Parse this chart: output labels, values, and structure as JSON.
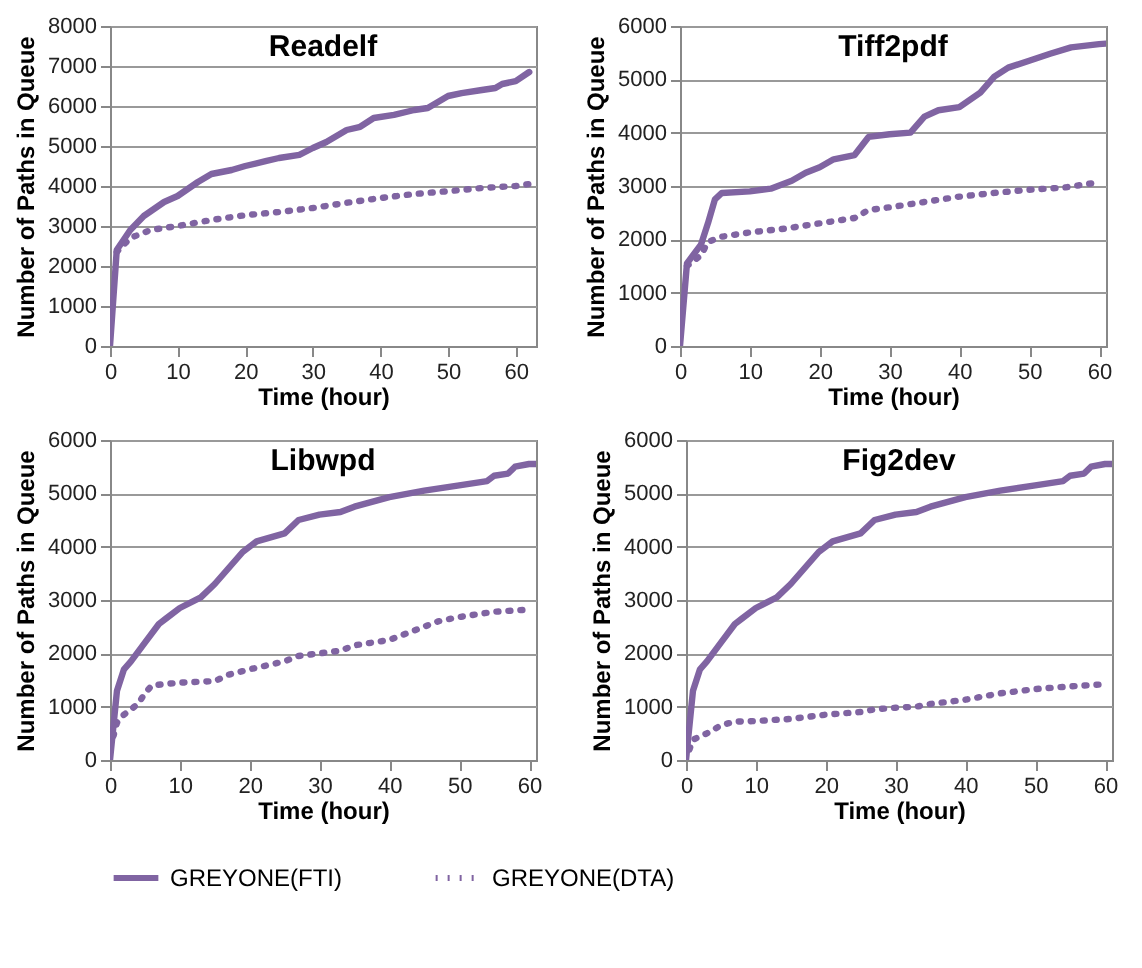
{
  "chart_data": [
    {
      "type": "line",
      "title": "Readelf",
      "xlabel": "Time (hour)",
      "ylabel": "Number of Paths in Queue",
      "xlim": [
        0,
        63
      ],
      "xticks": [
        0,
        10,
        20,
        30,
        40,
        50,
        60
      ],
      "ylim": [
        0,
        8000
      ],
      "yticks": [
        0,
        1000,
        2000,
        3000,
        4000,
        5000,
        6000,
        7000,
        8000
      ],
      "grid": "y",
      "legend": "bottom",
      "marker": "none",
      "series": [
        {
          "name": "GREYONE(FTI)",
          "color": "#8064a2",
          "line_style": "solid",
          "x": [
            0,
            1,
            3,
            5,
            8,
            10,
            13,
            15,
            18,
            20,
            23,
            25,
            28,
            30,
            32,
            35,
            37,
            39,
            42,
            45,
            47,
            50,
            52,
            55,
            57,
            58,
            60,
            62
          ],
          "values": [
            0,
            2400,
            2900,
            3250,
            3600,
            3750,
            4100,
            4300,
            4400,
            4500,
            4620,
            4700,
            4780,
            4950,
            5100,
            5400,
            5480,
            5700,
            5780,
            5900,
            5950,
            6250,
            6320,
            6400,
            6450,
            6550,
            6620,
            6850
          ]
        },
        {
          "name": "GREYONE(DTA)",
          "color": "#8064a2",
          "line_style": "dotted",
          "x": [
            1,
            3,
            6,
            10,
            15,
            20,
            25,
            30,
            35,
            40,
            45,
            50,
            55,
            60,
            62
          ],
          "values": [
            2350,
            2700,
            2900,
            3000,
            3150,
            3270,
            3350,
            3450,
            3580,
            3700,
            3800,
            3870,
            3950,
            4000,
            4050
          ]
        }
      ]
    },
    {
      "type": "line",
      "title": "Tiff2pdf",
      "xlabel": "Time (hour)",
      "ylabel": "Number of Paths in Queue",
      "xlim": [
        0,
        61
      ],
      "xticks": [
        0,
        10,
        20,
        30,
        40,
        50,
        60
      ],
      "ylim": [
        0,
        6000
      ],
      "yticks": [
        0,
        1000,
        2000,
        3000,
        4000,
        5000,
        6000
      ],
      "grid": "y",
      "legend": "bottom",
      "marker": "none",
      "series": [
        {
          "name": "GREYONE(FTI)",
          "color": "#8064a2",
          "line_style": "solid",
          "x": [
            0,
            1,
            3,
            4,
            5,
            6,
            10,
            13,
            16,
            18,
            20,
            22,
            25,
            27,
            30,
            33,
            35,
            37,
            40,
            43,
            45,
            47,
            50,
            53,
            56,
            60,
            61
          ],
          "values": [
            0,
            1550,
            1900,
            2300,
            2750,
            2870,
            2900,
            2950,
            3100,
            3250,
            3350,
            3500,
            3580,
            3920,
            3970,
            4000,
            4300,
            4420,
            4480,
            4750,
            5050,
            5220,
            5350,
            5480,
            5600,
            5660,
            5670
          ]
        },
        {
          "name": "GREYONE(DTA)",
          "color": "#8064a2",
          "line_style": "dotted",
          "x": [
            1,
            3,
            4,
            6,
            10,
            15,
            20,
            25,
            27,
            30,
            35,
            40,
            45,
            50,
            55,
            59
          ],
          "values": [
            1500,
            1700,
            1950,
            2050,
            2130,
            2200,
            2300,
            2400,
            2550,
            2600,
            2700,
            2800,
            2870,
            2930,
            2970,
            3050
          ]
        }
      ]
    },
    {
      "type": "line",
      "title": "Libwpd",
      "xlabel": "Time (hour)",
      "ylabel": "Number of Paths in Queue",
      "xlim": [
        0,
        61
      ],
      "xticks": [
        0,
        10,
        20,
        30,
        40,
        50,
        60
      ],
      "ylim": [
        0,
        6000
      ],
      "yticks": [
        0,
        1000,
        2000,
        3000,
        4000,
        5000,
        6000
      ],
      "grid": "y",
      "legend": "bottom",
      "marker": "none",
      "series": [
        {
          "name": "GREYONE(FTI)",
          "color": "#8064a2",
          "line_style": "solid",
          "x": [
            0,
            1,
            2,
            3,
            5,
            7,
            8,
            10,
            13,
            15,
            17,
            19,
            21,
            25,
            27,
            30,
            33,
            35,
            40,
            45,
            50,
            54,
            55,
            57,
            58,
            60,
            61
          ],
          "values": [
            0,
            1300,
            1700,
            1850,
            2200,
            2550,
            2650,
            2850,
            3050,
            3300,
            3600,
            3900,
            4100,
            4250,
            4500,
            4600,
            4650,
            4750,
            4930,
            5050,
            5150,
            5230,
            5330,
            5370,
            5500,
            5550,
            5550
          ]
        },
        {
          "name": "GREYONE(DTA)",
          "color": "#8064a2",
          "line_style": "dotted",
          "x": [
            0.5,
            1,
            2,
            4,
            5,
            6,
            10,
            15,
            17,
            20,
            25,
            27,
            30,
            33,
            35,
            40,
            45,
            47,
            50,
            55,
            60
          ],
          "values": [
            450,
            700,
            850,
            1050,
            1250,
            1400,
            1450,
            1480,
            1600,
            1700,
            1850,
            1950,
            2000,
            2050,
            2150,
            2250,
            2500,
            2600,
            2680,
            2780,
            2820
          ]
        }
      ]
    },
    {
      "type": "line",
      "title": "Fig2dev",
      "xlabel": "Time (hour)",
      "ylabel": "Number of Paths in Queue",
      "xlim": [
        0,
        61
      ],
      "xticks": [
        0,
        10,
        20,
        30,
        40,
        50,
        60
      ],
      "ylim": [
        0,
        6000
      ],
      "yticks": [
        0,
        1000,
        2000,
        3000,
        4000,
        5000,
        6000
      ],
      "grid": "y",
      "legend": "bottom",
      "marker": "none",
      "series": [
        {
          "name": "GREYONE(FTI)",
          "color": "#8064a2",
          "line_style": "solid",
          "x": [
            0,
            1,
            2,
            3,
            5,
            7,
            8,
            10,
            13,
            15,
            17,
            19,
            21,
            25,
            27,
            30,
            33,
            35,
            40,
            45,
            50,
            54,
            55,
            57,
            58,
            60,
            61
          ],
          "values": [
            0,
            1300,
            1700,
            1850,
            2200,
            2550,
            2650,
            2850,
            3050,
            3300,
            3600,
            3900,
            4100,
            4250,
            4500,
            4600,
            4650,
            4750,
            4930,
            5050,
            5150,
            5230,
            5330,
            5370,
            5500,
            5550,
            5550
          ]
        },
        {
          "name": "GREYONE(DTA)",
          "color": "#8064a2",
          "line_style": "dotted",
          "x": [
            0.5,
            1,
            3,
            5,
            7,
            10,
            15,
            20,
            25,
            27,
            30,
            33,
            35,
            40,
            45,
            50,
            55,
            60
          ],
          "values": [
            200,
            380,
            500,
            650,
            720,
            730,
            770,
            850,
            900,
            950,
            980,
            1000,
            1050,
            1130,
            1250,
            1330,
            1380,
            1420
          ]
        }
      ]
    }
  ]
}
